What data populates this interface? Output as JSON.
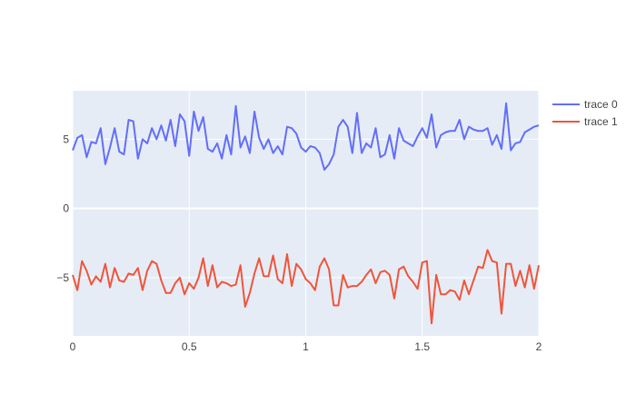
{
  "chart_data": {
    "type": "line",
    "title": "",
    "xlabel": "",
    "ylabel": "",
    "xlim": [
      0,
      2
    ],
    "ylim": [
      -9.2,
      8.5
    ],
    "grid": true,
    "legend_position": "top-right",
    "x_ticks": [
      {
        "value": 0,
        "label": "0"
      },
      {
        "value": 0.5,
        "label": "0.5"
      },
      {
        "value": 1,
        "label": "1"
      },
      {
        "value": 1.5,
        "label": "1.5"
      },
      {
        "value": 2,
        "label": "2"
      }
    ],
    "y_ticks": [
      {
        "value": -5,
        "label": "−5"
      },
      {
        "value": 0,
        "label": "0"
      },
      {
        "value": 5,
        "label": "5"
      }
    ],
    "x_range": [
      0,
      2
    ],
    "series": [
      {
        "name": "trace 0",
        "color": "#636efa",
        "values": [
          4.2,
          5.1,
          5.3,
          3.7,
          4.8,
          4.7,
          5.8,
          3.2,
          4.4,
          5.8,
          4.1,
          3.9,
          6.4,
          6.3,
          3.6,
          5.0,
          4.7,
          5.8,
          5.0,
          6.0,
          4.9,
          6.4,
          4.5,
          6.8,
          6.3,
          3.8,
          7.0,
          5.6,
          6.6,
          4.3,
          4.1,
          4.7,
          3.6,
          5.3,
          3.9,
          7.4,
          4.4,
          5.2,
          4.0,
          7.0,
          5.1,
          4.3,
          5.0,
          4.0,
          4.5,
          3.9,
          5.9,
          5.8,
          5.4,
          4.4,
          4.1,
          4.5,
          4.4,
          4.0,
          2.8,
          3.2,
          3.9,
          5.9,
          6.4,
          5.9,
          4.0,
          6.9,
          4.0,
          4.7,
          4.4,
          5.8,
          3.7,
          3.9,
          5.3,
          3.6,
          5.8,
          4.9,
          4.7,
          4.5,
          5.2,
          5.8,
          5.1,
          6.8,
          4.4,
          5.3,
          5.5,
          5.6,
          5.6,
          6.4,
          5.0,
          5.9,
          5.7,
          5.6,
          5.6,
          5.8,
          4.6,
          5.3,
          4.3,
          7.6,
          4.2,
          4.7,
          4.8,
          5.5,
          5.7,
          5.9,
          6.0
        ]
      },
      {
        "name": "trace 1",
        "color": "#ef553b",
        "values": [
          -4.8,
          -5.9,
          -3.8,
          -4.5,
          -5.5,
          -4.9,
          -5.3,
          -4.0,
          -5.7,
          -4.3,
          -5.2,
          -5.3,
          -4.7,
          -4.8,
          -4.3,
          -5.9,
          -4.5,
          -3.8,
          -4.0,
          -5.2,
          -6.1,
          -6.1,
          -5.4,
          -5.0,
          -6.2,
          -5.4,
          -5.8,
          -5.0,
          -3.6,
          -5.6,
          -4.1,
          -5.7,
          -5.3,
          -5.4,
          -5.6,
          -5.5,
          -4.1,
          -7.1,
          -6.1,
          -4.7,
          -3.6,
          -4.9,
          -4.9,
          -3.4,
          -5.1,
          -5.4,
          -3.3,
          -5.6,
          -4.0,
          -4.4,
          -5.1,
          -5.4,
          -5.9,
          -4.2,
          -3.6,
          -4.4,
          -7.0,
          -7.0,
          -4.8,
          -5.7,
          -5.6,
          -5.6,
          -5.3,
          -4.8,
          -4.4,
          -5.4,
          -4.6,
          -4.5,
          -4.8,
          -6.5,
          -4.4,
          -4.2,
          -4.9,
          -5.3,
          -5.8,
          -3.9,
          -3.8,
          -8.3,
          -4.8,
          -6.2,
          -6.2,
          -5.9,
          -6.0,
          -6.6,
          -5.2,
          -6.2,
          -5.2,
          -4.2,
          -4.3,
          -3.0,
          -3.8,
          -3.9,
          -7.6,
          -4.0,
          -4.0,
          -5.6,
          -4.5,
          -5.7,
          -4.1,
          -5.8,
          -4.1
        ]
      }
    ]
  }
}
